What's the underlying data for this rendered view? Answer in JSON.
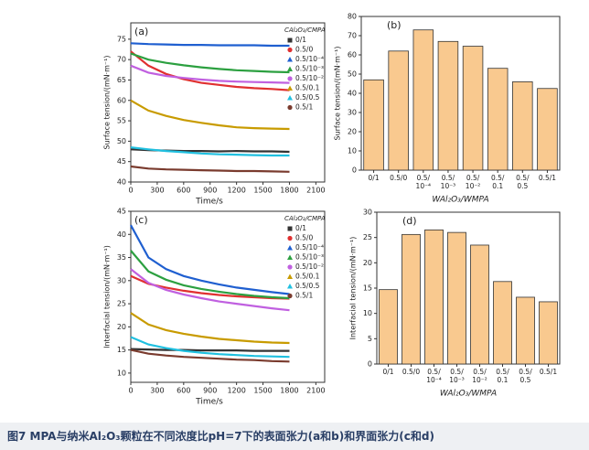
{
  "chart_data": [
    {
      "type": "line",
      "panel_label": "(a)",
      "xlabel": "Time/s",
      "ylabel": "Surface tension/(mN·m⁻¹)",
      "legend_title": "CAl₂O₃/CMPA",
      "x": [
        0,
        200,
        400,
        600,
        800,
        1000,
        1200,
        1400,
        1600,
        1800
      ],
      "xlim": [
        0,
        2200
      ],
      "xticks": [
        0,
        300,
        600,
        900,
        1200,
        1500,
        1800,
        2100
      ],
      "ylim": [
        40,
        79
      ],
      "yticks": [
        40,
        45,
        50,
        55,
        60,
        65,
        70,
        75
      ],
      "series": [
        {
          "name": "0/1",
          "color": "#333333",
          "values": [
            48,
            47.8,
            47.7,
            47.6,
            47.6,
            47.5,
            47.6,
            47.5,
            47.5,
            47.4
          ]
        },
        {
          "name": "0.5/0",
          "color": "#e03030",
          "values": [
            72,
            68.5,
            66.5,
            65.2,
            64.3,
            63.8,
            63.3,
            63,
            62.8,
            62.5
          ]
        },
        {
          "name": "0.5/10⁻⁴",
          "color": "#1f5fd0",
          "values": [
            74,
            73.8,
            73.7,
            73.6,
            73.6,
            73.5,
            73.5,
            73.5,
            73.4,
            73.4
          ]
        },
        {
          "name": "0.5/10⁻³",
          "color": "#2ca040",
          "values": [
            71.5,
            70,
            69.2,
            68.6,
            68.1,
            67.7,
            67.4,
            67.2,
            67,
            66.9
          ]
        },
        {
          "name": "0.5/10⁻²",
          "color": "#c060e0",
          "values": [
            68.5,
            66.8,
            66,
            65.5,
            65.1,
            64.8,
            64.6,
            64.5,
            64.4,
            64.3
          ]
        },
        {
          "name": "0.5/0.1",
          "color": "#c89b00",
          "values": [
            60,
            57.5,
            56.2,
            55.2,
            54.5,
            53.9,
            53.4,
            53.2,
            53.1,
            53
          ]
        },
        {
          "name": "0.5/0.5",
          "color": "#20c0e0",
          "values": [
            48.5,
            48,
            47.6,
            47.3,
            47,
            46.8,
            46.7,
            46.6,
            46.5,
            46.5
          ]
        },
        {
          "name": "0.5/1",
          "color": "#7a3b2e",
          "values": [
            43.8,
            43.3,
            43.1,
            43,
            42.9,
            42.8,
            42.7,
            42.7,
            42.6,
            42.5
          ]
        }
      ]
    },
    {
      "type": "bar",
      "panel_label": "(b)",
      "xlabel": "WAl₂O₃/WMPA",
      "ylabel": "Surface tension/(mN·m⁻¹)",
      "color": "#f9c98f",
      "categories": [
        [
          "0/1"
        ],
        [
          "0.5/0"
        ],
        [
          "0.5/",
          "10⁻⁴"
        ],
        [
          "0.5/",
          "10⁻³"
        ],
        [
          "0.5/",
          "10⁻²"
        ],
        [
          "0.5/",
          "0.1"
        ],
        [
          "0.5/",
          "0.5"
        ],
        [
          "0.5/1"
        ]
      ],
      "values": [
        47,
        62,
        73,
        67,
        64.5,
        53,
        46,
        42.5
      ],
      "ylim": [
        0,
        80
      ],
      "yticks": [
        0,
        10,
        20,
        30,
        40,
        50,
        60,
        70,
        80
      ]
    },
    {
      "type": "line",
      "panel_label": "(c)",
      "xlabel": "Time/s",
      "ylabel": "Interfacial tension/(mN·m⁻¹)",
      "legend_title": "CAl₂O₃/CMPA",
      "x": [
        0,
        200,
        400,
        600,
        800,
        1000,
        1200,
        1400,
        1600,
        1800
      ],
      "xlim": [
        0,
        2200
      ],
      "xticks": [
        0,
        300,
        600,
        900,
        1200,
        1500,
        1800,
        2100
      ],
      "ylim": [
        8,
        45
      ],
      "yticks": [
        10,
        15,
        20,
        25,
        30,
        35,
        40,
        45
      ],
      "series": [
        {
          "name": "0/1",
          "color": "#333333",
          "values": [
            15.2,
            15.1,
            15,
            15,
            14.9,
            14.9,
            14.9,
            14.8,
            14.8,
            14.8
          ]
        },
        {
          "name": "0.5/0",
          "color": "#e03030",
          "values": [
            31,
            29.3,
            28.5,
            27.8,
            27.3,
            26.9,
            26.6,
            26.4,
            26.2,
            26.1
          ]
        },
        {
          "name": "0.5/10⁻⁴",
          "color": "#1f5fd0",
          "values": [
            42,
            35,
            32.5,
            31,
            30,
            29.2,
            28.5,
            28,
            27.5,
            27.1
          ]
        },
        {
          "name": "0.5/10⁻³",
          "color": "#2ca040",
          "values": [
            36.5,
            32,
            30.2,
            29,
            28.2,
            27.6,
            27.1,
            26.7,
            26.4,
            26.2
          ]
        },
        {
          "name": "0.5/10⁻²",
          "color": "#c060e0",
          "values": [
            32.5,
            29.5,
            28,
            27,
            26.2,
            25.5,
            25,
            24.5,
            24,
            23.6
          ]
        },
        {
          "name": "0.5/0.1",
          "color": "#c89b00",
          "values": [
            23,
            20.5,
            19.3,
            18.5,
            17.9,
            17.4,
            17.1,
            16.8,
            16.6,
            16.5
          ]
        },
        {
          "name": "0.5/0.5",
          "color": "#20c0e0",
          "values": [
            17.8,
            16.2,
            15.4,
            14.8,
            14.4,
            14.1,
            13.9,
            13.7,
            13.6,
            13.5
          ]
        },
        {
          "name": "0.5/1",
          "color": "#7a3b2e",
          "values": [
            15,
            14.2,
            13.8,
            13.5,
            13.3,
            13.1,
            12.9,
            12.8,
            12.6,
            12.5
          ]
        }
      ]
    },
    {
      "type": "bar",
      "panel_label": "(d)",
      "xlabel": "WAl₂O₃/WMPA",
      "ylabel": "Interfacial tension/(mN·m⁻¹)",
      "color": "#f9c98f",
      "categories": [
        [
          "0/1"
        ],
        [
          "0.5/0"
        ],
        [
          "0.5/",
          "10⁻⁴"
        ],
        [
          "0.5/",
          "10⁻³"
        ],
        [
          "0.5/",
          "10⁻²"
        ],
        [
          "0.5/",
          "0.1"
        ],
        [
          "0.5/",
          "0.5"
        ],
        [
          "0.5/1"
        ]
      ],
      "values": [
        14.7,
        25.6,
        26.5,
        26,
        23.5,
        16.3,
        13.2,
        12.3
      ],
      "ylim": [
        0,
        30
      ],
      "yticks": [
        0,
        5,
        10,
        15,
        20,
        25,
        30
      ]
    }
  ],
  "caption": "图7 MPA与纳米Al₂O₃颗粒在不同浓度比pH=7下的表面张力(a和b)和界面张力(c和d)"
}
